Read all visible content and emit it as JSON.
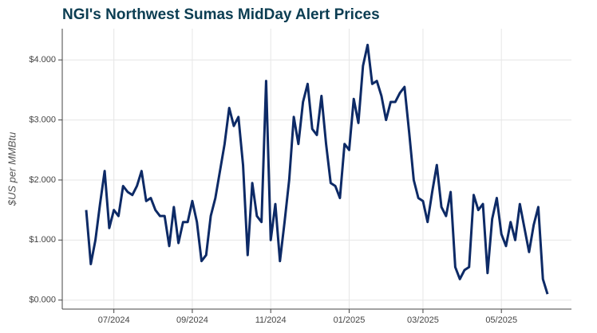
{
  "chart_data": {
    "type": "line",
    "title": "NGI's Northwest Sumas MidDay Alert Prices",
    "y_label": "$US per MMBtu",
    "categories": [
      null,
      null,
      null,
      null,
      null,
      null,
      "07/2024",
      null,
      null,
      null,
      null,
      null,
      null,
      null,
      null,
      null,
      null,
      null,
      null,
      null,
      null,
      null,
      null,
      "09/2024",
      null,
      null,
      null,
      null,
      null,
      null,
      null,
      null,
      null,
      null,
      null,
      null,
      null,
      null,
      null,
      null,
      "11/2024",
      null,
      null,
      null,
      null,
      null,
      null,
      null,
      null,
      null,
      null,
      null,
      null,
      null,
      null,
      null,
      null,
      "01/2025",
      null,
      null,
      null,
      null,
      null,
      null,
      null,
      null,
      null,
      null,
      null,
      null,
      null,
      null,
      null,
      "03/2025",
      null,
      null,
      null,
      null,
      null,
      null,
      null,
      null,
      null,
      null,
      null,
      null,
      null,
      null,
      null,
      null,
      "05/2025",
      null,
      null,
      null,
      null,
      null,
      null,
      null,
      null,
      null,
      null
    ],
    "series": [
      {
        "name": "Northwest Sumas",
        "color": "#0d2a66",
        "values": [
          1.5,
          0.6,
          1.0,
          1.6,
          2.15,
          1.2,
          1.5,
          1.4,
          1.9,
          1.8,
          1.75,
          1.9,
          2.15,
          1.65,
          1.7,
          1.5,
          1.4,
          1.4,
          0.9,
          1.55,
          0.95,
          1.3,
          1.3,
          1.65,
          1.3,
          0.65,
          0.75,
          1.4,
          1.7,
          2.15,
          2.6,
          3.2,
          2.9,
          3.05,
          2.25,
          0.75,
          1.95,
          1.4,
          1.3,
          3.65,
          1.0,
          1.6,
          0.65,
          1.3,
          2.0,
          3.05,
          2.6,
          3.3,
          3.6,
          2.85,
          2.75,
          3.4,
          2.6,
          1.95,
          1.9,
          1.7,
          2.6,
          2.5,
          3.35,
          2.95,
          3.9,
          4.25,
          3.6,
          3.65,
          3.4,
          3.0,
          3.3,
          3.3,
          3.45,
          3.55,
          2.8,
          2.0,
          1.7,
          1.65,
          1.3,
          1.8,
          2.25,
          1.55,
          1.4,
          1.8,
          0.55,
          0.35,
          0.5,
          0.55,
          1.75,
          1.5,
          1.6,
          0.45,
          1.35,
          1.7,
          1.1,
          0.9,
          1.3,
          1.0,
          1.6,
          1.2,
          0.8,
          1.25,
          1.55,
          0.35,
          0.1
        ]
      }
    ],
    "ylim": [
      -0.15,
      4.52
    ],
    "yticks": [
      {
        "value": 0,
        "label": "$0.000"
      },
      {
        "value": 1,
        "label": "$1.000"
      },
      {
        "value": 2,
        "label": "$2.000"
      },
      {
        "value": 3,
        "label": "$3.000"
      },
      {
        "value": 4,
        "label": "$4.000"
      }
    ],
    "grid": true
  }
}
